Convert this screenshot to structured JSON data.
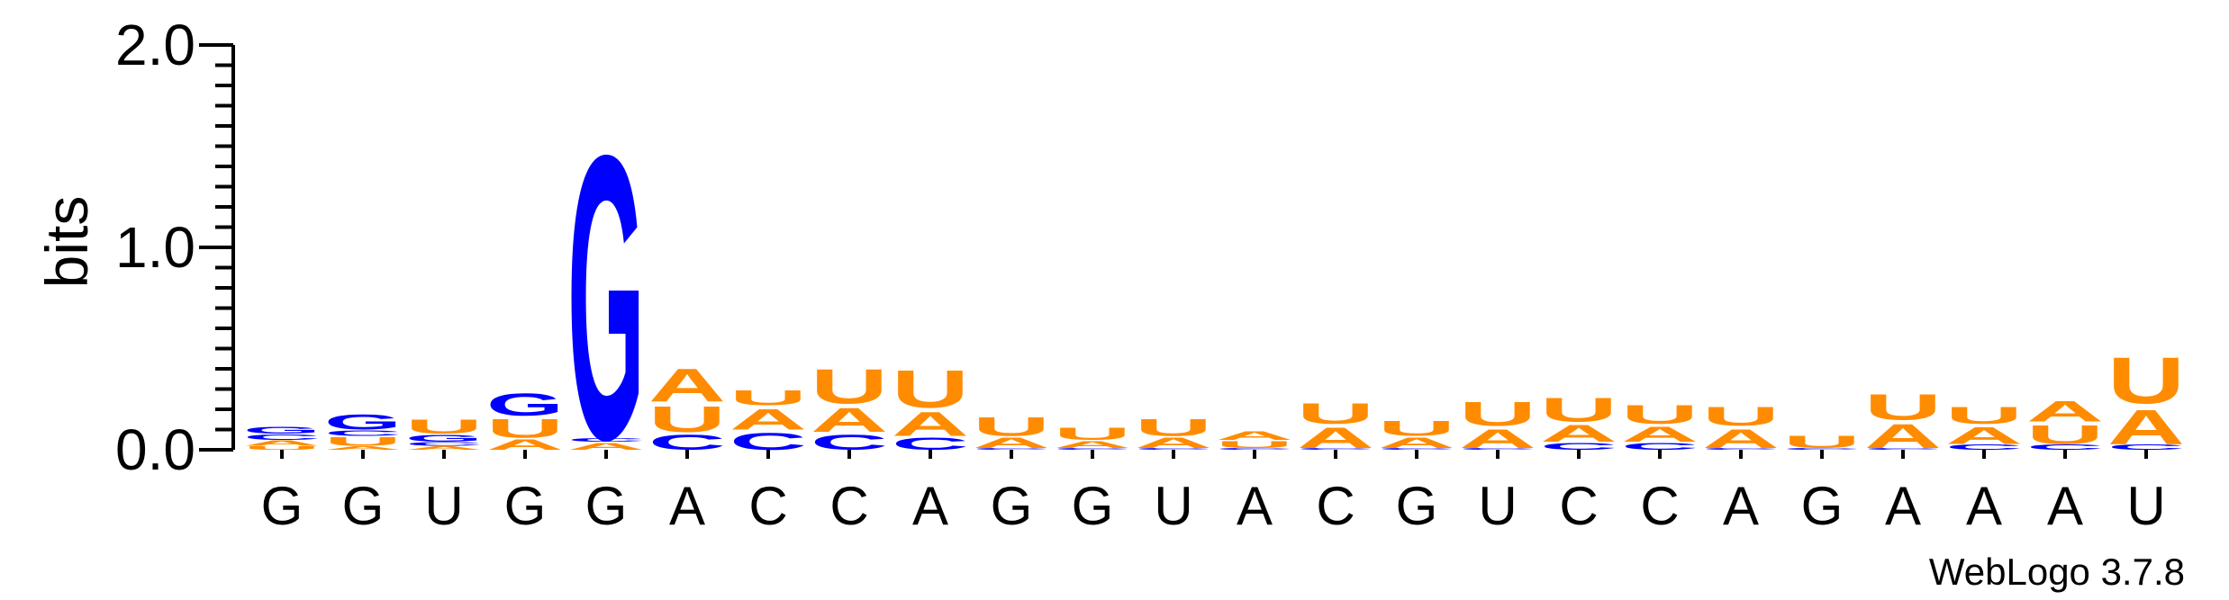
{
  "chart_data": {
    "type": "sequence-logo",
    "ylabel": "bits",
    "ylim": [
      0,
      2.0
    ],
    "yticks": [
      "0.0",
      "1.0",
      "2.0"
    ],
    "xtick_labels": [
      "G",
      "G",
      "U",
      "G",
      "G",
      "A",
      "C",
      "C",
      "A",
      "G",
      "G",
      "U",
      "A",
      "C",
      "G",
      "U",
      "C",
      "C",
      "A",
      "G",
      "A",
      "A",
      "A",
      "U"
    ],
    "colors": {
      "A": "#FF8C00",
      "U": "#FF8C00",
      "G": "#0000FF",
      "C": "#0000FF"
    },
    "positions": [
      [
        {
          "letter": "U",
          "bits": 0.02
        },
        {
          "letter": "A",
          "bits": 0.03
        },
        {
          "letter": "C",
          "bits": 0.03
        },
        {
          "letter": "G",
          "bits": 0.04
        }
      ],
      [
        {
          "letter": "A",
          "bits": 0.02
        },
        {
          "letter": "U",
          "bits": 0.05
        },
        {
          "letter": "C",
          "bits": 0.03
        },
        {
          "letter": "G",
          "bits": 0.09
        }
      ],
      [
        {
          "letter": "A",
          "bits": 0.02
        },
        {
          "letter": "C",
          "bits": 0.02
        },
        {
          "letter": "G",
          "bits": 0.04
        },
        {
          "letter": "U",
          "bits": 0.08
        }
      ],
      [
        {
          "letter": "A",
          "bits": 0.06
        },
        {
          "letter": "U",
          "bits": 0.11
        },
        {
          "letter": "G",
          "bits": 0.13
        }
      ],
      [
        {
          "letter": "A",
          "bits": 0.04
        },
        {
          "letter": "C",
          "bits": 0.02
        },
        {
          "letter": "G",
          "bits": 1.66
        }
      ],
      [
        {
          "letter": "C",
          "bits": 0.09
        },
        {
          "letter": "U",
          "bits": 0.15
        },
        {
          "letter": "A",
          "bits": 0.19
        }
      ],
      [
        {
          "letter": "C",
          "bits": 0.1
        },
        {
          "letter": "A",
          "bits": 0.12
        },
        {
          "letter": "U",
          "bits": 0.09
        }
      ],
      [
        {
          "letter": "C",
          "bits": 0.09
        },
        {
          "letter": "A",
          "bits": 0.14
        },
        {
          "letter": "U",
          "bits": 0.2
        }
      ],
      [
        {
          "letter": "C",
          "bits": 0.07
        },
        {
          "letter": "A",
          "bits": 0.14
        },
        {
          "letter": "U",
          "bits": 0.22
        }
      ],
      [
        {
          "letter": "C",
          "bits": 0.01
        },
        {
          "letter": "A",
          "bits": 0.06
        },
        {
          "letter": "U",
          "bits": 0.11
        }
      ],
      [
        {
          "letter": "C",
          "bits": 0.01
        },
        {
          "letter": "A",
          "bits": 0.04
        },
        {
          "letter": "U",
          "bits": 0.07
        }
      ],
      [
        {
          "letter": "C",
          "bits": 0.01
        },
        {
          "letter": "A",
          "bits": 0.06
        },
        {
          "letter": "U",
          "bits": 0.1
        }
      ],
      [
        {
          "letter": "C",
          "bits": 0.01
        },
        {
          "letter": "U",
          "bits": 0.04
        },
        {
          "letter": "A",
          "bits": 0.05
        }
      ],
      [
        {
          "letter": "C",
          "bits": 0.01
        },
        {
          "letter": "A",
          "bits": 0.12
        },
        {
          "letter": "U",
          "bits": 0.12
        }
      ],
      [
        {
          "letter": "C",
          "bits": 0.01
        },
        {
          "letter": "A",
          "bits": 0.06
        },
        {
          "letter": "U",
          "bits": 0.09
        }
      ],
      [
        {
          "letter": "C",
          "bits": 0.01
        },
        {
          "letter": "A",
          "bits": 0.11
        },
        {
          "letter": "U",
          "bits": 0.14
        }
      ],
      [
        {
          "letter": "C",
          "bits": 0.04
        },
        {
          "letter": "A",
          "bits": 0.1
        },
        {
          "letter": "U",
          "bits": 0.14
        }
      ],
      [
        {
          "letter": "C",
          "bits": 0.04
        },
        {
          "letter": "A",
          "bits": 0.09
        },
        {
          "letter": "U",
          "bits": 0.11
        }
      ],
      [
        {
          "letter": "C",
          "bits": 0.01
        },
        {
          "letter": "A",
          "bits": 0.11
        },
        {
          "letter": "U",
          "bits": 0.11
        }
      ],
      [
        {
          "letter": "C",
          "bits": 0.01
        },
        {
          "letter": "U",
          "bits": 0.07
        }
      ],
      [
        {
          "letter": "C",
          "bits": 0.01
        },
        {
          "letter": "A",
          "bits": 0.14
        },
        {
          "letter": "U",
          "bits": 0.15
        }
      ],
      [
        {
          "letter": "C",
          "bits": 0.03
        },
        {
          "letter": "A",
          "bits": 0.1
        },
        {
          "letter": "U",
          "bits": 0.1
        }
      ],
      [
        {
          "letter": "C",
          "bits": 0.03
        },
        {
          "letter": "U",
          "bits": 0.11
        },
        {
          "letter": "A",
          "bits": 0.12
        }
      ],
      [
        {
          "letter": "C",
          "bits": 0.03
        },
        {
          "letter": "A",
          "bits": 0.2
        },
        {
          "letter": "U",
          "bits": 0.27
        }
      ]
    ]
  },
  "credit": "WebLogo 3.7.8"
}
